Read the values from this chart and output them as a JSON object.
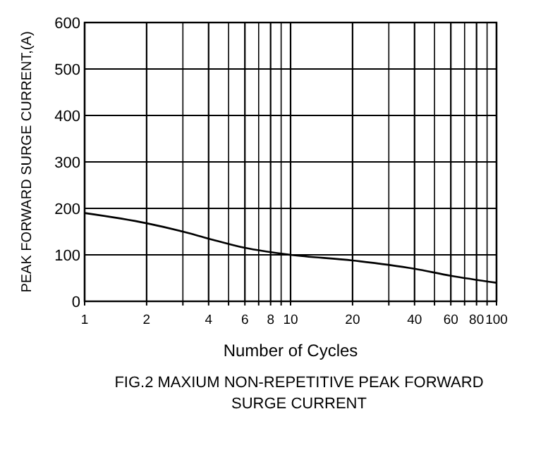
{
  "chart_data": {
    "type": "line",
    "title": "FIG.2 MAXIUM NON-REPETITIVE PEAK FORWARD SURGE CURRENT",
    "xlabel": "Number of Cycles",
    "ylabel": "PEAK FORWARD SURGE CURRENT,(A)",
    "log": "x",
    "grid": true,
    "marker": "none",
    "line_style": "solid",
    "xlim": [
      1,
      100
    ],
    "ylim": [
      0,
      600
    ],
    "xticks": [
      1,
      2,
      {
        "value": 3,
        "label": null
      },
      4,
      {
        "value": 5,
        "label": null
      },
      6,
      {
        "value": 7,
        "label": null
      },
      8,
      {
        "value": 9,
        "label": null
      },
      10,
      20,
      {
        "value": 30,
        "label": null
      },
      40,
      {
        "value": 50,
        "label": null
      },
      60,
      {
        "value": 70,
        "label": null
      },
      80,
      {
        "value": 90,
        "label": null
      },
      100
    ],
    "yticks": [
      0,
      100,
      200,
      300,
      400,
      500,
      600
    ],
    "series": [
      {
        "color": "#000000",
        "x": [
          1,
          2,
          3,
          4,
          6,
          10,
          20,
          40,
          60,
          100
        ],
        "values": [
          190,
          168,
          150,
          135,
          115,
          100,
          88,
          70,
          55,
          40
        ]
      }
    ]
  }
}
